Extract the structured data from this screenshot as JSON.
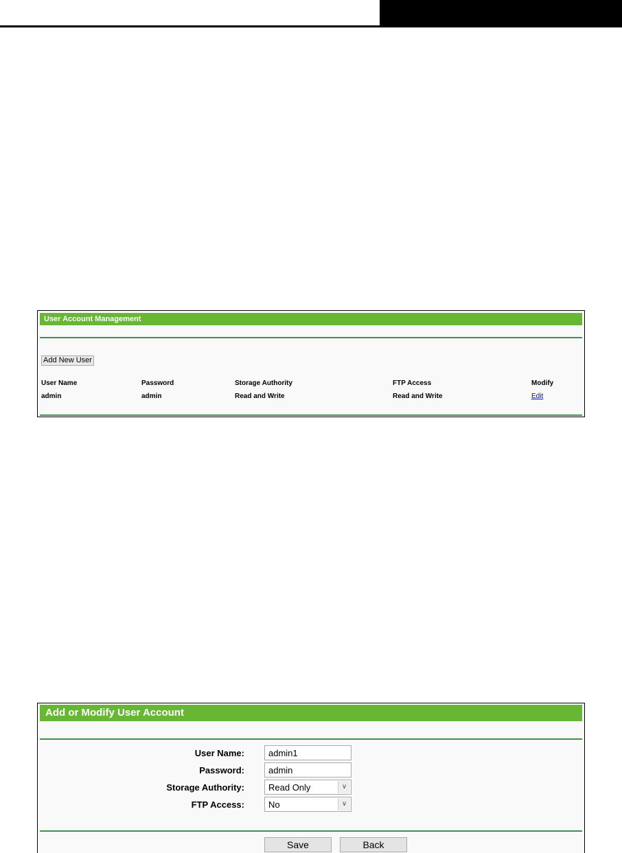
{
  "panel1": {
    "title": "User Account Management",
    "add_button": "Add New User",
    "columns": [
      "User Name",
      "Password",
      "Storage Authority",
      "FTP Access",
      "Modify"
    ],
    "rows": [
      {
        "user": "admin",
        "password": "admin",
        "storage": "Read and Write",
        "ftp": "Read and Write",
        "modify": "Edit"
      }
    ]
  },
  "panel2": {
    "title": "Add or Modify User Account",
    "user_name_label": "User Name:",
    "user_name_value": "admin1",
    "password_label": "Password:",
    "password_value": "admin",
    "storage_label": "Storage Authority:",
    "storage_value": "Read Only",
    "ftp_label": "FTP Access:",
    "ftp_value": "No",
    "save": "Save",
    "back": "Back"
  },
  "colors": {
    "header_green": "#67b734",
    "line_green": "#3d8e55",
    "link": "#0000cc"
  }
}
